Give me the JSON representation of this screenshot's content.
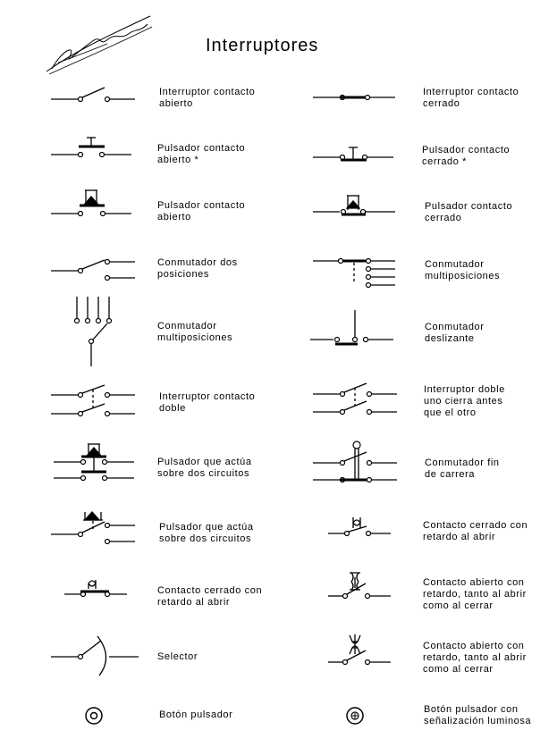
{
  "title": "Interruptores",
  "left": [
    {
      "label": "Interruptor contacto\nabierto",
      "icon": "switch-open-icon"
    },
    {
      "label": "Pulsador contacto\nabierto *",
      "icon": "pushbutton-open-icon"
    },
    {
      "label": "Pulsador contacto\nabierto",
      "icon": "pushbutton-open-mushroom-icon"
    },
    {
      "label": "Conmutador dos\nposiciones",
      "icon": "changeover-switch-icon"
    },
    {
      "label": "Conmutador\nmultiposiciones",
      "icon": "multiposition-switch-vertical-icon"
    },
    {
      "label": "Interruptor contacto\ndoble",
      "icon": "double-switch-icon"
    },
    {
      "label": "Pulsador que actúa\nsobre dos circuitos",
      "icon": "pushbutton-two-circuits-icon"
    },
    {
      "label": "Pulsador que actúa\nsobre dos circuitos",
      "icon": "pushbutton-two-circuits-changeover-icon"
    },
    {
      "label": "Contacto cerrado con\nretardo al abrir",
      "icon": "delayed-closed-contact-icon"
    },
    {
      "label": "Selector",
      "icon": "selector-icon"
    },
    {
      "label": "Botón pulsador",
      "icon": "push-button-icon"
    }
  ],
  "right": [
    {
      "label": "Interruptor contacto\ncerrado",
      "icon": "switch-closed-icon"
    },
    {
      "label": "Pulsador contacto\ncerrado *",
      "icon": "pushbutton-closed-icon"
    },
    {
      "label": "Pulsador contacto\ncerrado",
      "icon": "pushbutton-closed-mushroom-icon"
    },
    {
      "label": "Conmutador\nmultiposiciones",
      "icon": "multiposition-switch-icon"
    },
    {
      "label": "Conmutador\ndeslizante",
      "icon": "sliding-switch-icon"
    },
    {
      "label": "Interruptor doble\nuno cierra antes\nque el otro",
      "icon": "double-switch-staggered-icon"
    },
    {
      "label": "Conmutador fin\nde carrera",
      "icon": "limit-switch-icon"
    },
    {
      "label": "Contacto cerrado con\nretardo al abrir",
      "icon": "delayed-closed-contact-icon"
    },
    {
      "label": "Contacto abierto con\nretardo, tanto al abrir\ncomo al cerrar",
      "icon": "delayed-open-closed-contact-icon"
    },
    {
      "label": "Contacto abierto con\nretardo, tanto al abrir\ncomo al cerrar",
      "icon": "delayed-open-contact-icon"
    },
    {
      "label": "Botón pulsador con\nseñalización luminosa",
      "icon": "illuminated-push-button-icon"
    }
  ]
}
